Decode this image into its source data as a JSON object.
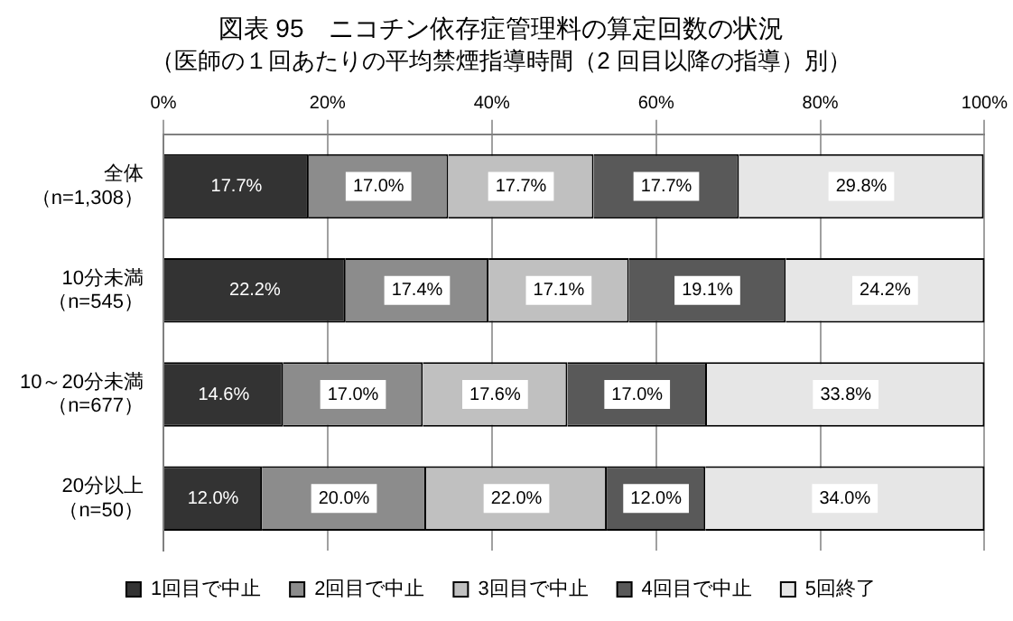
{
  "chart_data": {
    "type": "bar",
    "orientation": "horizontal",
    "stacked": true,
    "title": "図表 95　ニコチン依存症管理料の算定回数の状況",
    "subtitle": "（医師の１回あたりの平均禁煙指導時間（2 回目以降の指導）別）",
    "categories": [
      "全体（n=1,308）",
      "10分未満（n=545）",
      "10～20分未満（n=677）",
      "20分以上（n=50）"
    ],
    "series": [
      {
        "name": "1回目で中止",
        "color": "#333333",
        "values": [
          17.7,
          22.2,
          14.6,
          12.0
        ],
        "value_labels": [
          "17.7%",
          "22.2%",
          "14.6%",
          "12.0%"
        ]
      },
      {
        "name": "2回目で中止",
        "color": "#8c8c8c",
        "values": [
          17.0,
          17.4,
          17.0,
          20.0
        ],
        "value_labels": [
          "17.0%",
          "17.4%",
          "17.0%",
          "20.0%"
        ]
      },
      {
        "name": "3回目で中止",
        "color": "#c0c0c0",
        "values": [
          17.7,
          17.1,
          17.6,
          22.0
        ],
        "value_labels": [
          "17.7%",
          "17.1%",
          "17.6%",
          "22.0%"
        ]
      },
      {
        "name": "4回目で中止",
        "color": "#595959",
        "values": [
          17.7,
          19.1,
          17.0,
          12.0
        ],
        "value_labels": [
          "17.7%",
          "19.1%",
          "17.0%",
          "12.0%"
        ]
      },
      {
        "name": "5回終了",
        "color": "#e6e6e6",
        "values": [
          29.8,
          24.2,
          33.8,
          34.0
        ],
        "value_labels": [
          "29.8%",
          "24.2%",
          "33.8%",
          "34.0%"
        ]
      }
    ],
    "xlim": [
      0,
      100
    ],
    "xticks": [
      {
        "value": 0,
        "label": "0%"
      },
      {
        "value": 20,
        "label": "20%"
      },
      {
        "value": 40,
        "label": "40%"
      },
      {
        "value": 60,
        "label": "60%"
      },
      {
        "value": 80,
        "label": "80%"
      },
      {
        "value": 100,
        "label": "100%"
      }
    ],
    "grid": "x",
    "legend": "bottom"
  }
}
